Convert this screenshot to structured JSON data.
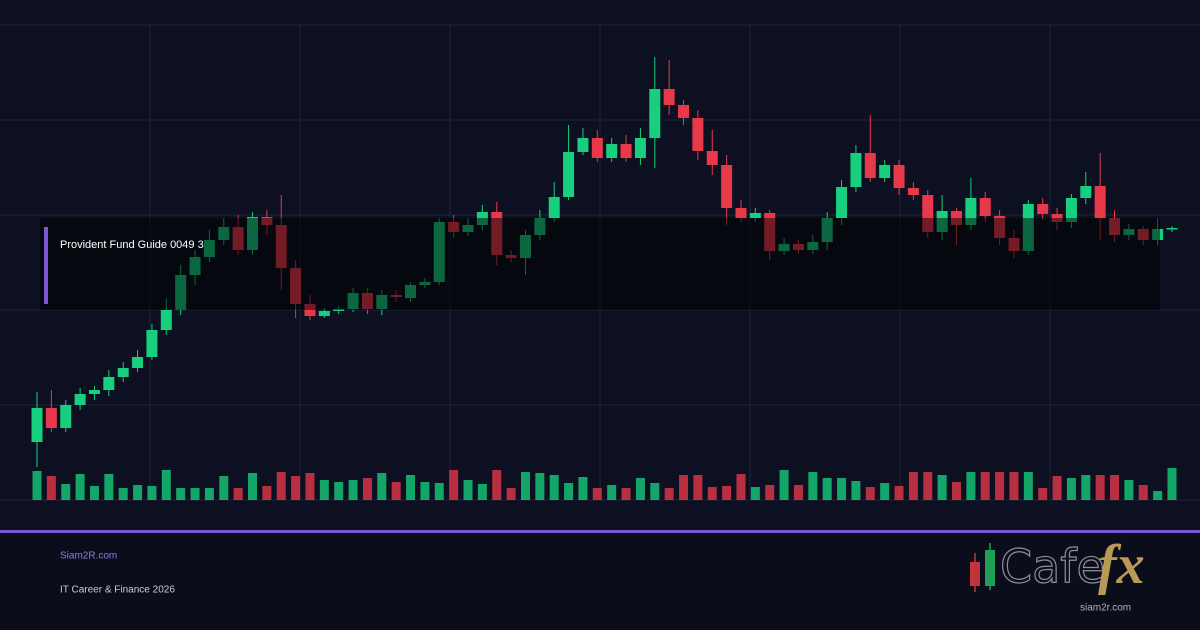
{
  "chart_data": {
    "type": "candlestick",
    "open": [
      58,
      92,
      72,
      95,
      106,
      110,
      123,
      132,
      143,
      170,
      190,
      225,
      243,
      260,
      273,
      250,
      283,
      275,
      232,
      196,
      184,
      189,
      191,
      207,
      191,
      205,
      202,
      215,
      218,
      278,
      268,
      275,
      288,
      245,
      242,
      265,
      282,
      303,
      348,
      362,
      342,
      356,
      342,
      362,
      411,
      395,
      382,
      349,
      335,
      292,
      282,
      287,
      249,
      256,
      250,
      258,
      282,
      313,
      347,
      322,
      335,
      312,
      305,
      268,
      289,
      275,
      302,
      284,
      262,
      249,
      296,
      286,
      278,
      302,
      314,
      282,
      265,
      271,
      260,
      271
    ],
    "high": [
      108,
      110,
      100,
      112,
      114,
      130,
      138,
      150,
      176,
      202,
      235,
      250,
      270,
      282,
      285,
      288,
      290,
      305,
      240,
      205,
      192,
      194,
      212,
      212,
      210,
      210,
      218,
      222,
      282,
      285,
      282,
      295,
      298,
      250,
      270,
      290,
      318,
      375,
      372,
      370,
      362,
      365,
      372,
      443,
      440,
      400,
      390,
      370,
      345,
      300,
      292,
      290,
      262,
      260,
      265,
      288,
      320,
      355,
      385,
      340,
      340,
      318,
      310,
      305,
      292,
      322,
      308,
      290,
      270,
      300,
      302,
      292,
      306,
      328,
      347,
      290,
      276,
      274,
      282,
      274
    ],
    "low": [
      33,
      68,
      68,
      90,
      100,
      104,
      118,
      128,
      140,
      165,
      185,
      215,
      238,
      255,
      245,
      245,
      265,
      210,
      182,
      180,
      182,
      186,
      188,
      186,
      185,
      198,
      198,
      212,
      215,
      262,
      264,
      270,
      235,
      238,
      225,
      260,
      278,
      300,
      345,
      338,
      338,
      338,
      335,
      332,
      385,
      375,
      340,
      325,
      275,
      278,
      278,
      240,
      245,
      246,
      246,
      250,
      275,
      308,
      318,
      318,
      305,
      300,
      262,
      260,
      255,
      270,
      278,
      255,
      242,
      245,
      280,
      270,
      272,
      296,
      260,
      258,
      260,
      255,
      255,
      268
    ],
    "close": [
      92,
      72,
      95,
      106,
      110,
      123,
      132,
      143,
      170,
      190,
      225,
      243,
      260,
      273,
      250,
      283,
      275,
      232,
      196,
      184,
      189,
      191,
      207,
      191,
      205,
      203,
      215,
      218,
      278,
      268,
      275,
      288,
      245,
      242,
      265,
      282,
      303,
      348,
      362,
      342,
      356,
      342,
      362,
      411,
      395,
      382,
      349,
      335,
      292,
      282,
      287,
      249,
      256,
      250,
      258,
      282,
      313,
      347,
      322,
      335,
      312,
      305,
      268,
      289,
      275,
      302,
      284,
      262,
      249,
      296,
      286,
      278,
      302,
      314,
      282,
      265,
      271,
      260,
      271,
      272
    ],
    "volume": [
      29,
      24,
      16,
      26,
      14,
      26,
      12,
      15,
      14,
      30,
      12,
      12,
      12,
      24,
      12,
      27,
      14,
      28,
      24,
      27,
      20,
      18,
      20,
      22,
      27,
      18,
      25,
      18,
      17,
      30,
      20,
      16,
      30,
      12,
      28,
      27,
      25,
      17,
      23,
      12,
      15,
      12,
      22,
      17,
      12,
      25,
      25,
      13,
      14,
      26,
      13,
      15,
      30,
      15,
      28,
      22,
      22,
      19,
      13,
      17,
      14,
      28,
      28,
      25,
      18,
      28,
      28,
      28,
      28,
      28,
      12,
      24,
      22,
      25,
      25,
      25,
      20,
      15,
      9,
      32
    ],
    "ylim": [
      0,
      475
    ],
    "yticks": [
      0,
      95,
      190,
      285,
      380,
      475
    ],
    "volume_lim": [
      0,
      35
    ],
    "grid": true,
    "up_color": "#17cf7e",
    "down_color": "#e8394a"
  },
  "overlay": {
    "label": "Provident Fund Guide 0049 3"
  },
  "footer": {
    "site": "Siam2R.com",
    "tagline": "IT Career & Finance 2026"
  },
  "logo": {
    "word": "Cafe",
    "accent": "fx",
    "url": "siam2r.com"
  }
}
